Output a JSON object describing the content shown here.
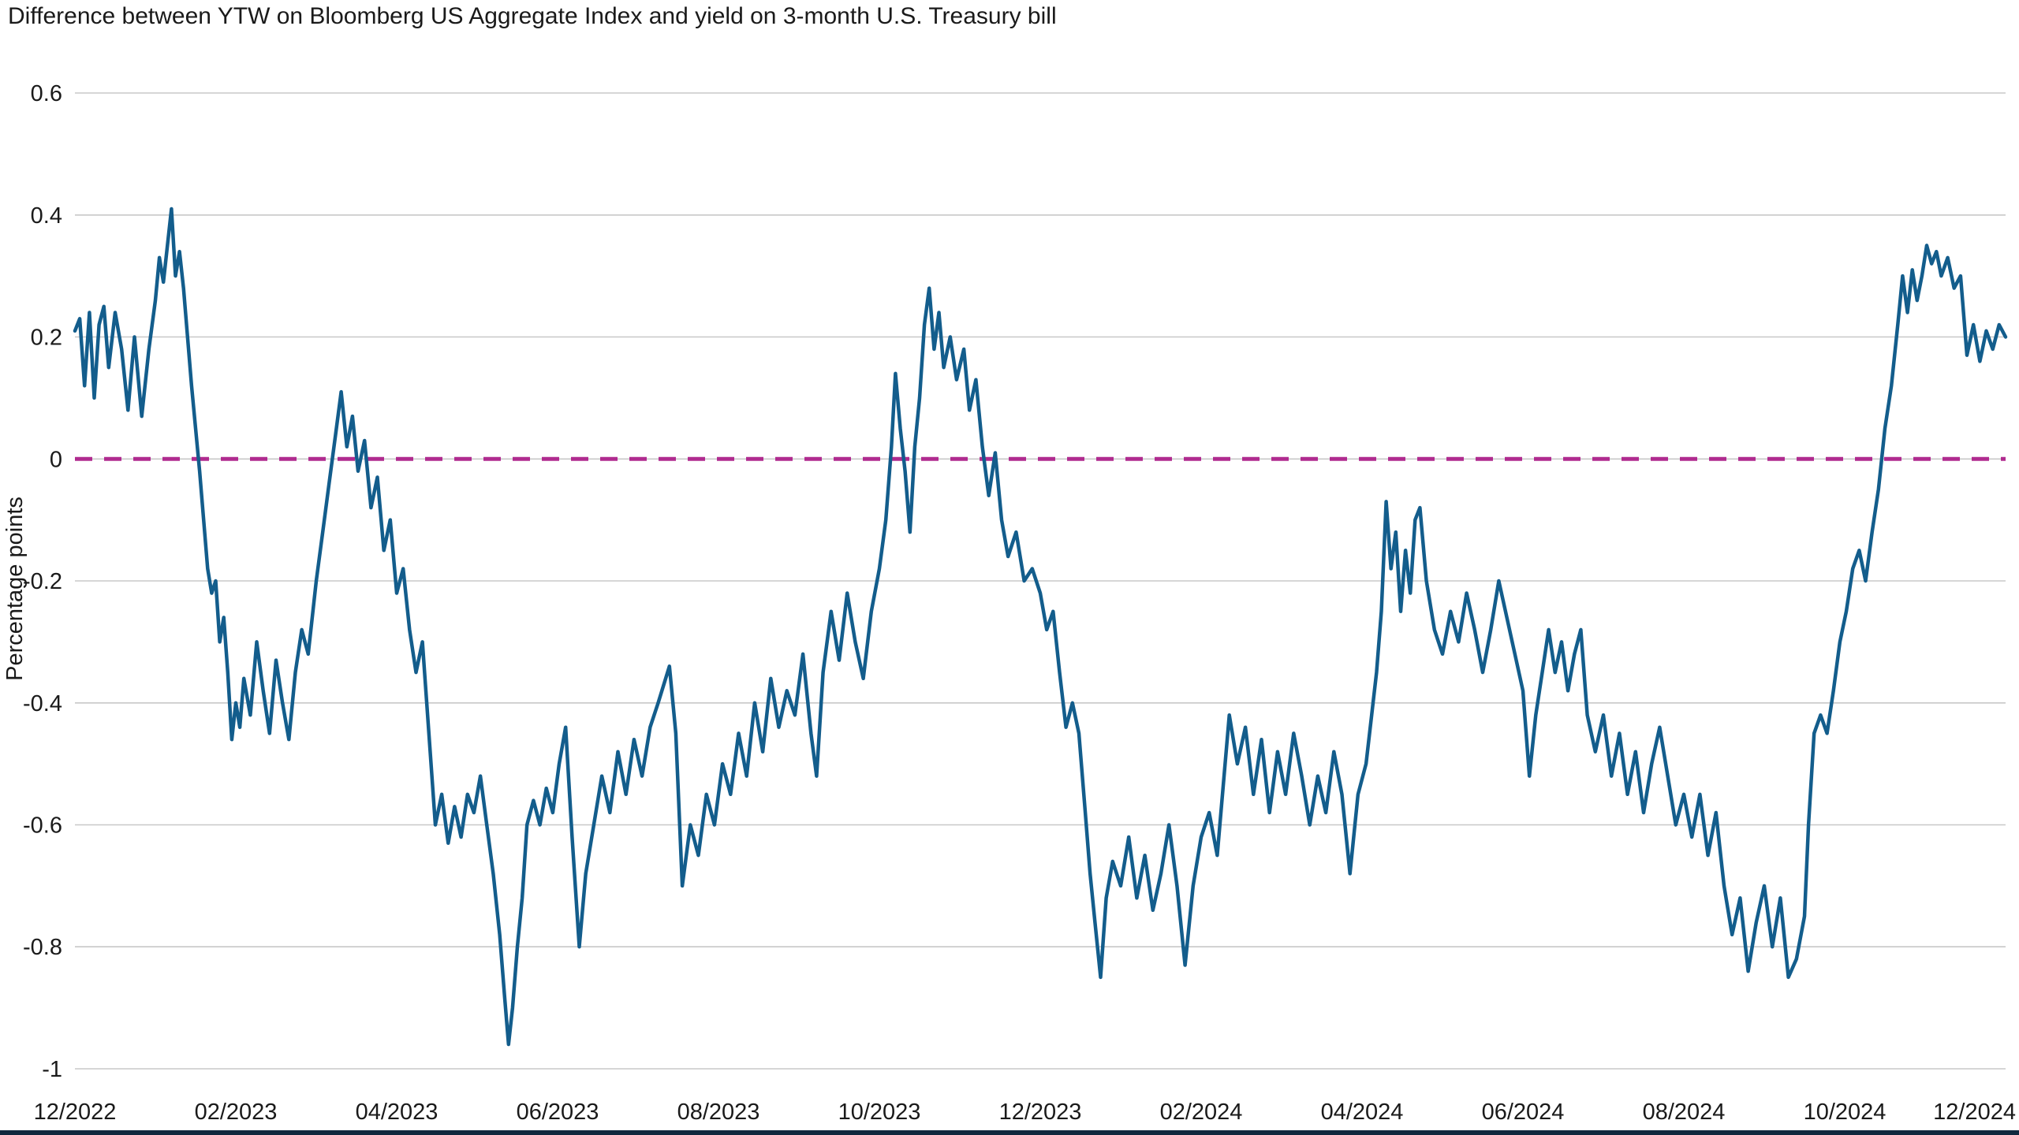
{
  "chart_data": {
    "type": "line",
    "title": "Difference between YTW on Bloomberg US Aggregate Index and yield on 3-month U.S. Treasury bill",
    "ylabel": "Percentage points",
    "xlabel": "",
    "ylim": [
      -1,
      0.6
    ],
    "y_tick_labels": [
      "0.6",
      "0.4",
      "0.2",
      "0",
      "-0.2",
      "-0.4",
      "-0.6",
      "-0.8",
      "-1"
    ],
    "x_tick_labels": [
      "12/2022",
      "02/2023",
      "04/2023",
      "06/2023",
      "08/2023",
      "10/2023",
      "12/2023",
      "02/2024",
      "04/2024",
      "06/2024",
      "08/2024",
      "10/2024",
      "12/2024"
    ],
    "x_range_months": [
      0,
      24
    ],
    "grid": "horizontal",
    "legend": "none",
    "zero_line": {
      "value": 0,
      "style": "dashed",
      "color": "#B02B8F"
    },
    "colors": {
      "line": "#135D8C",
      "grid": "#C8C8C8",
      "text": "#1A1A1A",
      "zero_dash": "#B02B8F",
      "bottom_bar": "#10283E",
      "background": "#FFFFFF"
    },
    "series": [
      {
        "points": [
          [
            0,
            0.21
          ],
          [
            0.06,
            0.23
          ],
          [
            0.12,
            0.12
          ],
          [
            0.18,
            0.24
          ],
          [
            0.24,
            0.1
          ],
          [
            0.3,
            0.22
          ],
          [
            0.36,
            0.25
          ],
          [
            0.42,
            0.15
          ],
          [
            0.5,
            0.24
          ],
          [
            0.58,
            0.18
          ],
          [
            0.66,
            0.08
          ],
          [
            0.74,
            0.2
          ],
          [
            0.83,
            0.07
          ],
          [
            0.92,
            0.18
          ],
          [
            1,
            0.26
          ],
          [
            1.05,
            0.33
          ],
          [
            1.1,
            0.29
          ],
          [
            1.15,
            0.35
          ],
          [
            1.2,
            0.41
          ],
          [
            1.25,
            0.3
          ],
          [
            1.3,
            0.34
          ],
          [
            1.35,
            0.28
          ],
          [
            1.4,
            0.2
          ],
          [
            1.45,
            0.12
          ],
          [
            1.5,
            0.05
          ],
          [
            1.55,
            -0.02
          ],
          [
            1.6,
            -0.1
          ],
          [
            1.65,
            -0.18
          ],
          [
            1.7,
            -0.22
          ],
          [
            1.75,
            -0.2
          ],
          [
            1.8,
            -0.3
          ],
          [
            1.85,
            -0.26
          ],
          [
            1.9,
            -0.35
          ],
          [
            1.95,
            -0.46
          ],
          [
            2.0,
            -0.4
          ],
          [
            2.05,
            -0.44
          ],
          [
            2.1,
            -0.36
          ],
          [
            2.18,
            -0.42
          ],
          [
            2.26,
            -0.3
          ],
          [
            2.34,
            -0.38
          ],
          [
            2.42,
            -0.45
          ],
          [
            2.5,
            -0.33
          ],
          [
            2.58,
            -0.4
          ],
          [
            2.66,
            -0.46
          ],
          [
            2.74,
            -0.35
          ],
          [
            2.82,
            -0.28
          ],
          [
            2.9,
            -0.32
          ],
          [
            3.0,
            -0.2
          ],
          [
            3.08,
            -0.12
          ],
          [
            3.16,
            -0.04
          ],
          [
            3.24,
            0.04
          ],
          [
            3.31,
            0.11
          ],
          [
            3.38,
            0.02
          ],
          [
            3.45,
            0.07
          ],
          [
            3.52,
            -0.02
          ],
          [
            3.6,
            0.03
          ],
          [
            3.68,
            -0.08
          ],
          [
            3.76,
            -0.03
          ],
          [
            3.84,
            -0.15
          ],
          [
            3.92,
            -0.1
          ],
          [
            4.0,
            -0.22
          ],
          [
            4.08,
            -0.18
          ],
          [
            4.16,
            -0.28
          ],
          [
            4.24,
            -0.35
          ],
          [
            4.32,
            -0.3
          ],
          [
            4.4,
            -0.45
          ],
          [
            4.48,
            -0.6
          ],
          [
            4.56,
            -0.55
          ],
          [
            4.64,
            -0.63
          ],
          [
            4.72,
            -0.57
          ],
          [
            4.8,
            -0.62
          ],
          [
            4.88,
            -0.55
          ],
          [
            4.96,
            -0.58
          ],
          [
            5.04,
            -0.52
          ],
          [
            5.12,
            -0.6
          ],
          [
            5.2,
            -0.68
          ],
          [
            5.28,
            -0.78
          ],
          [
            5.34,
            -0.88
          ],
          [
            5.39,
            -0.96
          ],
          [
            5.44,
            -0.9
          ],
          [
            5.5,
            -0.8
          ],
          [
            5.56,
            -0.72
          ],
          [
            5.62,
            -0.6
          ],
          [
            5.7,
            -0.56
          ],
          [
            5.78,
            -0.6
          ],
          [
            5.86,
            -0.54
          ],
          [
            5.94,
            -0.58
          ],
          [
            6.02,
            -0.5
          ],
          [
            6.1,
            -0.44
          ],
          [
            6.18,
            -0.62
          ],
          [
            6.27,
            -0.8
          ],
          [
            6.35,
            -0.68
          ],
          [
            6.45,
            -0.6
          ],
          [
            6.55,
            -0.52
          ],
          [
            6.65,
            -0.58
          ],
          [
            6.75,
            -0.48
          ],
          [
            6.85,
            -0.55
          ],
          [
            6.95,
            -0.46
          ],
          [
            7.05,
            -0.52
          ],
          [
            7.15,
            -0.44
          ],
          [
            7.25,
            -0.4
          ],
          [
            7.39,
            -0.34
          ],
          [
            7.47,
            -0.45
          ],
          [
            7.55,
            -0.7
          ],
          [
            7.65,
            -0.6
          ],
          [
            7.75,
            -0.65
          ],
          [
            7.85,
            -0.55
          ],
          [
            7.95,
            -0.6
          ],
          [
            8.05,
            -0.5
          ],
          [
            8.15,
            -0.55
          ],
          [
            8.25,
            -0.45
          ],
          [
            8.35,
            -0.52
          ],
          [
            8.45,
            -0.4
          ],
          [
            8.55,
            -0.48
          ],
          [
            8.65,
            -0.36
          ],
          [
            8.75,
            -0.44
          ],
          [
            8.85,
            -0.38
          ],
          [
            8.95,
            -0.42
          ],
          [
            9.05,
            -0.32
          ],
          [
            9.15,
            -0.45
          ],
          [
            9.22,
            -0.52
          ],
          [
            9.3,
            -0.35
          ],
          [
            9.4,
            -0.25
          ],
          [
            9.5,
            -0.33
          ],
          [
            9.6,
            -0.22
          ],
          [
            9.7,
            -0.3
          ],
          [
            9.8,
            -0.36
          ],
          [
            9.9,
            -0.25
          ],
          [
            10.0,
            -0.18
          ],
          [
            10.08,
            -0.1
          ],
          [
            10.15,
            0.02
          ],
          [
            10.2,
            0.14
          ],
          [
            10.26,
            0.05
          ],
          [
            10.32,
            -0.02
          ],
          [
            10.38,
            -0.12
          ],
          [
            10.44,
            0.02
          ],
          [
            10.5,
            0.1
          ],
          [
            10.56,
            0.22
          ],
          [
            10.62,
            0.28
          ],
          [
            10.68,
            0.18
          ],
          [
            10.74,
            0.24
          ],
          [
            10.8,
            0.15
          ],
          [
            10.88,
            0.2
          ],
          [
            10.96,
            0.13
          ],
          [
            11.05,
            0.18
          ],
          [
            11.12,
            0.08
          ],
          [
            11.2,
            0.13
          ],
          [
            11.28,
            0.02
          ],
          [
            11.36,
            -0.06
          ],
          [
            11.44,
            0.01
          ],
          [
            11.52,
            -0.1
          ],
          [
            11.6,
            -0.16
          ],
          [
            11.7,
            -0.12
          ],
          [
            11.8,
            -0.2
          ],
          [
            11.9,
            -0.18
          ],
          [
            12.0,
            -0.22
          ],
          [
            12.08,
            -0.28
          ],
          [
            12.16,
            -0.25
          ],
          [
            12.24,
            -0.35
          ],
          [
            12.32,
            -0.44
          ],
          [
            12.4,
            -0.4
          ],
          [
            12.48,
            -0.45
          ],
          [
            12.56,
            -0.58
          ],
          [
            12.62,
            -0.68
          ],
          [
            12.68,
            -0.76
          ],
          [
            12.75,
            -0.85
          ],
          [
            12.82,
            -0.72
          ],
          [
            12.9,
            -0.66
          ],
          [
            13.0,
            -0.7
          ],
          [
            13.1,
            -0.62
          ],
          [
            13.2,
            -0.72
          ],
          [
            13.3,
            -0.65
          ],
          [
            13.4,
            -0.74
          ],
          [
            13.5,
            -0.68
          ],
          [
            13.6,
            -0.6
          ],
          [
            13.7,
            -0.7
          ],
          [
            13.8,
            -0.83
          ],
          [
            13.9,
            -0.7
          ],
          [
            14.0,
            -0.62
          ],
          [
            14.1,
            -0.58
          ],
          [
            14.2,
            -0.65
          ],
          [
            14.35,
            -0.42
          ],
          [
            14.45,
            -0.5
          ],
          [
            14.55,
            -0.44
          ],
          [
            14.65,
            -0.55
          ],
          [
            14.75,
            -0.46
          ],
          [
            14.85,
            -0.58
          ],
          [
            14.95,
            -0.48
          ],
          [
            15.05,
            -0.55
          ],
          [
            15.15,
            -0.45
          ],
          [
            15.25,
            -0.52
          ],
          [
            15.35,
            -0.6
          ],
          [
            15.45,
            -0.52
          ],
          [
            15.55,
            -0.58
          ],
          [
            15.65,
            -0.48
          ],
          [
            15.75,
            -0.55
          ],
          [
            15.85,
            -0.68
          ],
          [
            15.95,
            -0.55
          ],
          [
            16.05,
            -0.5
          ],
          [
            16.12,
            -0.42
          ],
          [
            16.18,
            -0.35
          ],
          [
            16.24,
            -0.25
          ],
          [
            16.3,
            -0.07
          ],
          [
            16.36,
            -0.18
          ],
          [
            16.42,
            -0.12
          ],
          [
            16.48,
            -0.25
          ],
          [
            16.54,
            -0.15
          ],
          [
            16.6,
            -0.22
          ],
          [
            16.66,
            -0.1
          ],
          [
            16.72,
            -0.08
          ],
          [
            16.8,
            -0.2
          ],
          [
            16.9,
            -0.28
          ],
          [
            17.0,
            -0.32
          ],
          [
            17.1,
            -0.25
          ],
          [
            17.2,
            -0.3
          ],
          [
            17.3,
            -0.22
          ],
          [
            17.4,
            -0.28
          ],
          [
            17.5,
            -0.35
          ],
          [
            17.6,
            -0.28
          ],
          [
            17.7,
            -0.2
          ],
          [
            17.8,
            -0.26
          ],
          [
            17.9,
            -0.32
          ],
          [
            18.0,
            -0.38
          ],
          [
            18.08,
            -0.52
          ],
          [
            18.16,
            -0.42
          ],
          [
            18.24,
            -0.35
          ],
          [
            18.32,
            -0.28
          ],
          [
            18.4,
            -0.35
          ],
          [
            18.48,
            -0.3
          ],
          [
            18.56,
            -0.38
          ],
          [
            18.64,
            -0.32
          ],
          [
            18.72,
            -0.28
          ],
          [
            18.8,
            -0.42
          ],
          [
            18.9,
            -0.48
          ],
          [
            19.0,
            -0.42
          ],
          [
            19.1,
            -0.52
          ],
          [
            19.2,
            -0.45
          ],
          [
            19.3,
            -0.55
          ],
          [
            19.4,
            -0.48
          ],
          [
            19.5,
            -0.58
          ],
          [
            19.6,
            -0.5
          ],
          [
            19.7,
            -0.44
          ],
          [
            19.8,
            -0.52
          ],
          [
            19.9,
            -0.6
          ],
          [
            20.0,
            -0.55
          ],
          [
            20.1,
            -0.62
          ],
          [
            20.2,
            -0.55
          ],
          [
            20.3,
            -0.65
          ],
          [
            20.4,
            -0.58
          ],
          [
            20.5,
            -0.7
          ],
          [
            20.6,
            -0.78
          ],
          [
            20.7,
            -0.72
          ],
          [
            20.8,
            -0.84
          ],
          [
            20.9,
            -0.76
          ],
          [
            21.0,
            -0.7
          ],
          [
            21.1,
            -0.8
          ],
          [
            21.2,
            -0.72
          ],
          [
            21.3,
            -0.85
          ],
          [
            21.4,
            -0.82
          ],
          [
            21.5,
            -0.75
          ],
          [
            21.55,
            -0.6
          ],
          [
            21.62,
            -0.45
          ],
          [
            21.7,
            -0.42
          ],
          [
            21.78,
            -0.45
          ],
          [
            21.86,
            -0.38
          ],
          [
            21.94,
            -0.3
          ],
          [
            22.02,
            -0.25
          ],
          [
            22.1,
            -0.18
          ],
          [
            22.18,
            -0.15
          ],
          [
            22.26,
            -0.2
          ],
          [
            22.34,
            -0.12
          ],
          [
            22.42,
            -0.05
          ],
          [
            22.5,
            0.05
          ],
          [
            22.58,
            0.12
          ],
          [
            22.66,
            0.22
          ],
          [
            22.72,
            0.3
          ],
          [
            22.78,
            0.24
          ],
          [
            22.84,
            0.31
          ],
          [
            22.9,
            0.26
          ],
          [
            22.96,
            0.3
          ],
          [
            23.02,
            0.35
          ],
          [
            23.08,
            0.32
          ],
          [
            23.14,
            0.34
          ],
          [
            23.2,
            0.3
          ],
          [
            23.28,
            0.33
          ],
          [
            23.36,
            0.28
          ],
          [
            23.44,
            0.3
          ],
          [
            23.52,
            0.17
          ],
          [
            23.6,
            0.22
          ],
          [
            23.68,
            0.16
          ],
          [
            23.76,
            0.21
          ],
          [
            23.84,
            0.18
          ],
          [
            23.92,
            0.22
          ],
          [
            24.0,
            0.2
          ]
        ]
      }
    ]
  }
}
